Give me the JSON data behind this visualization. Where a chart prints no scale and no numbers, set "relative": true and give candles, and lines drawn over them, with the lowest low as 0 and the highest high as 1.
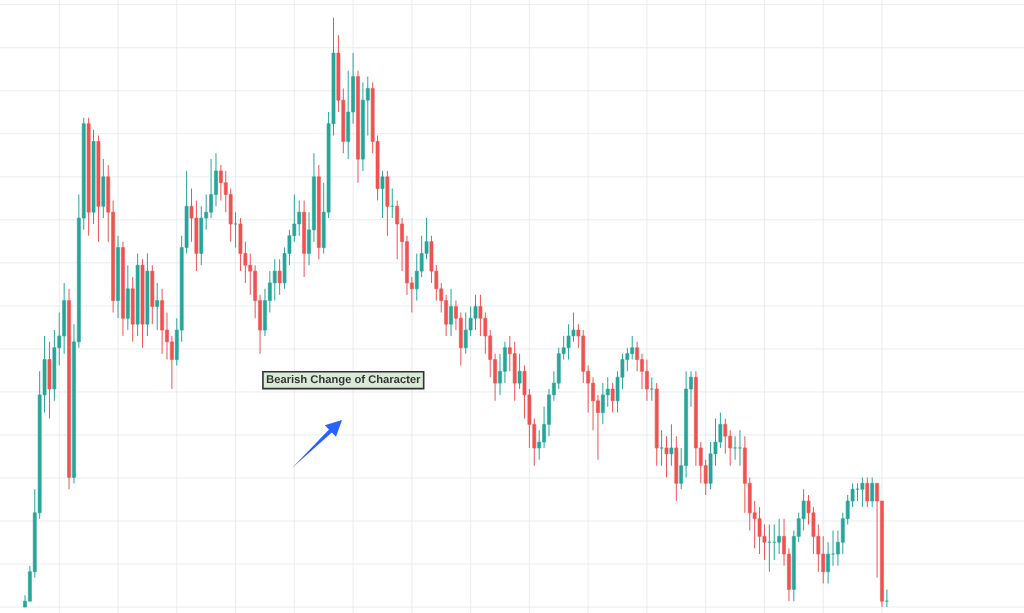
{
  "chart_data": {
    "type": "candlestick",
    "relative": true,
    "grid": true,
    "annotations": [
      "Bearish Change of Character"
    ],
    "categories": [
      null,
      null,
      null,
      null,
      null,
      null,
      null,
      null,
      null,
      null,
      null,
      null,
      null,
      null,
      null,
      null,
      null,
      null,
      null,
      null,
      null,
      null,
      null,
      null,
      null,
      null,
      null,
      null,
      null,
      null,
      null,
      null,
      null,
      null,
      null,
      null,
      null,
      null,
      null,
      null,
      null,
      null,
      null,
      null,
      null,
      null,
      null,
      null,
      null,
      null,
      null,
      null,
      null,
      null,
      null,
      null,
      null,
      null,
      null,
      null,
      null,
      null,
      null,
      null,
      null,
      null,
      null,
      null,
      null,
      null,
      null,
      null,
      null,
      null,
      null,
      null,
      null,
      null,
      null,
      null,
      null,
      null,
      null,
      null,
      null,
      null,
      null,
      null,
      null,
      null,
      null,
      null,
      null,
      null,
      null,
      null,
      null,
      null,
      null,
      null,
      null,
      null,
      null,
      null,
      null,
      null,
      null,
      null,
      null,
      null,
      null,
      null,
      null,
      null,
      null,
      null,
      null,
      null,
      null,
      null,
      null,
      null,
      null,
      null,
      null,
      null,
      null,
      null,
      null,
      null,
      null,
      null,
      null,
      null,
      null,
      null,
      null,
      null,
      null,
      null,
      null,
      null,
      null,
      null,
      null,
      null,
      null,
      null,
      null,
      null,
      null,
      null,
      null,
      null,
      null,
      null,
      null,
      null,
      null,
      null,
      null,
      null,
      null,
      null,
      null,
      null,
      null,
      null,
      null,
      null,
      null,
      null,
      null,
      null,
      null,
      null,
      null
    ],
    "ohlc": [
      [
        0,
        0.02,
        0,
        0.01
      ],
      [
        0.01,
        0.07,
        0.01,
        0.06
      ],
      [
        0.06,
        0.2,
        0.05,
        0.16
      ],
      [
        0.16,
        0.4,
        0.15,
        0.36
      ],
      [
        0.36,
        0.46,
        0.33,
        0.42
      ],
      [
        0.42,
        0.45,
        0.32,
        0.37
      ],
      [
        0.37,
        0.47,
        0.35,
        0.44
      ],
      [
        0.44,
        0.5,
        0.41,
        0.46
      ],
      [
        0.46,
        0.55,
        0.43,
        0.52
      ],
      [
        0.52,
        0.54,
        0.2,
        0.22
      ],
      [
        0.22,
        0.48,
        0.21,
        0.45
      ],
      [
        0.45,
        0.7,
        0.44,
        0.66
      ],
      [
        0.66,
        0.83,
        0.64,
        0.82
      ],
      [
        0.82,
        0.83,
        0.63,
        0.67
      ],
      [
        0.67,
        0.81,
        0.65,
        0.79
      ],
      [
        0.79,
        0.8,
        0.62,
        0.68
      ],
      [
        0.68,
        0.76,
        0.66,
        0.73
      ],
      [
        0.73,
        0.75,
        0.62,
        0.67
      ],
      [
        0.67,
        0.69,
        0.5,
        0.52
      ],
      [
        0.52,
        0.63,
        0.49,
        0.61
      ],
      [
        0.61,
        0.62,
        0.46,
        0.49
      ],
      [
        0.49,
        0.58,
        0.47,
        0.54
      ],
      [
        0.54,
        0.56,
        0.45,
        0.48
      ],
      [
        0.48,
        0.6,
        0.46,
        0.58
      ],
      [
        0.58,
        0.59,
        0.44,
        0.48
      ],
      [
        0.48,
        0.6,
        0.46,
        0.57
      ],
      [
        0.57,
        0.58,
        0.48,
        0.51
      ],
      [
        0.51,
        0.55,
        0.47,
        0.52
      ],
      [
        0.52,
        0.54,
        0.43,
        0.47
      ],
      [
        0.47,
        0.5,
        0.42,
        0.45
      ],
      [
        0.45,
        0.46,
        0.37,
        0.42
      ],
      [
        0.42,
        0.49,
        0.41,
        0.47
      ],
      [
        0.47,
        0.63,
        0.45,
        0.61
      ],
      [
        0.61,
        0.74,
        0.6,
        0.68
      ],
      [
        0.68,
        0.71,
        0.62,
        0.66
      ],
      [
        0.66,
        0.69,
        0.57,
        0.6
      ],
      [
        0.6,
        0.68,
        0.58,
        0.66
      ],
      [
        0.66,
        0.7,
        0.64,
        0.67
      ],
      [
        0.67,
        0.76,
        0.66,
        0.7
      ],
      [
        0.7,
        0.77,
        0.68,
        0.74
      ],
      [
        0.74,
        0.75,
        0.69,
        0.72
      ],
      [
        0.72,
        0.74,
        0.67,
        0.7
      ],
      [
        0.7,
        0.71,
        0.62,
        0.65
      ],
      [
        0.65,
        0.67,
        0.61,
        0.65
      ],
      [
        0.65,
        0.66,
        0.57,
        0.6
      ],
      [
        0.6,
        0.62,
        0.55,
        0.58
      ],
      [
        0.58,
        0.6,
        0.53,
        0.57
      ],
      [
        0.57,
        0.58,
        0.49,
        0.52
      ],
      [
        0.52,
        0.53,
        0.43,
        0.47
      ],
      [
        0.47,
        0.54,
        0.46,
        0.52
      ],
      [
        0.52,
        0.57,
        0.5,
        0.55
      ],
      [
        0.55,
        0.59,
        0.52,
        0.57
      ],
      [
        0.57,
        0.59,
        0.53,
        0.55
      ],
      [
        0.55,
        0.61,
        0.54,
        0.6
      ],
      [
        0.6,
        0.64,
        0.58,
        0.63
      ],
      [
        0.63,
        0.7,
        0.62,
        0.65
      ],
      [
        0.65,
        0.69,
        0.63,
        0.67
      ],
      [
        0.67,
        0.69,
        0.56,
        0.6
      ],
      [
        0.6,
        0.67,
        0.58,
        0.64
      ],
      [
        0.64,
        0.77,
        0.62,
        0.73
      ],
      [
        0.73,
        0.75,
        0.59,
        0.61
      ],
      [
        0.61,
        0.72,
        0.6,
        0.67
      ],
      [
        0.67,
        0.84,
        0.66,
        0.82
      ],
      [
        0.82,
        1,
        0.8,
        0.94
      ],
      [
        0.94,
        0.97,
        0.84,
        0.86
      ],
      [
        0.86,
        0.88,
        0.77,
        0.79
      ],
      [
        0.79,
        0.91,
        0.76,
        0.84
      ],
      [
        0.84,
        0.94,
        0.82,
        0.9
      ],
      [
        0.9,
        0.91,
        0.72,
        0.76
      ],
      [
        0.76,
        0.89,
        0.74,
        0.86
      ],
      [
        0.86,
        0.9,
        0.8,
        0.88
      ],
      [
        0.88,
        0.89,
        0.77,
        0.79
      ],
      [
        0.79,
        0.8,
        0.69,
        0.71
      ],
      [
        0.71,
        0.74,
        0.66,
        0.73
      ],
      [
        0.73,
        0.74,
        0.63,
        0.68
      ],
      [
        0.68,
        0.71,
        0.66,
        0.68
      ],
      [
        0.68,
        0.69,
        0.59,
        0.65
      ],
      [
        0.65,
        0.66,
        0.57,
        0.62
      ],
      [
        0.62,
        0.63,
        0.53,
        0.55
      ],
      [
        0.55,
        0.56,
        0.5,
        0.54
      ],
      [
        0.54,
        0.6,
        0.52,
        0.57
      ],
      [
        0.57,
        0.63,
        0.56,
        0.6
      ],
      [
        0.6,
        0.66,
        0.59,
        0.62
      ],
      [
        0.62,
        0.63,
        0.55,
        0.57
      ],
      [
        0.57,
        0.58,
        0.52,
        0.54
      ],
      [
        0.54,
        0.55,
        0.5,
        0.52
      ],
      [
        0.52,
        0.53,
        0.46,
        0.48
      ],
      [
        0.48,
        0.54,
        0.46,
        0.51
      ],
      [
        0.51,
        0.52,
        0.47,
        0.49
      ],
      [
        0.49,
        0.5,
        0.41,
        0.44
      ],
      [
        0.44,
        0.5,
        0.43,
        0.47
      ],
      [
        0.47,
        0.51,
        0.46,
        0.49
      ],
      [
        0.49,
        0.53,
        0.47,
        0.51
      ],
      [
        0.51,
        0.53,
        0.46,
        0.49
      ],
      [
        0.49,
        0.5,
        0.43,
        0.46
      ],
      [
        0.46,
        0.47,
        0.39,
        0.42
      ],
      [
        0.42,
        0.43,
        0.35,
        0.38
      ],
      [
        0.38,
        0.43,
        0.36,
        0.4
      ],
      [
        0.4,
        0.45,
        0.38,
        0.44
      ],
      [
        0.44,
        0.46,
        0.4,
        0.43
      ],
      [
        0.43,
        0.45,
        0.35,
        0.38
      ],
      [
        0.38,
        0.43,
        0.37,
        0.4
      ],
      [
        0.4,
        0.41,
        0.32,
        0.36
      ],
      [
        0.36,
        0.37,
        0.27,
        0.31
      ],
      [
        0.31,
        0.32,
        0.24,
        0.27
      ],
      [
        0.27,
        0.3,
        0.25,
        0.28
      ],
      [
        0.28,
        0.34,
        0.27,
        0.31
      ],
      [
        0.31,
        0.37,
        0.29,
        0.36
      ],
      [
        0.36,
        0.4,
        0.35,
        0.38
      ],
      [
        0.38,
        0.44,
        0.37,
        0.43
      ],
      [
        0.43,
        0.46,
        0.42,
        0.44
      ],
      [
        0.44,
        0.48,
        0.42,
        0.46
      ],
      [
        0.46,
        0.5,
        0.45,
        0.47
      ],
      [
        0.47,
        0.48,
        0.44,
        0.46
      ],
      [
        0.46,
        0.47,
        0.38,
        0.4
      ],
      [
        0.4,
        0.41,
        0.33,
        0.38
      ],
      [
        0.38,
        0.39,
        0.3,
        0.35
      ],
      [
        0.35,
        0.36,
        0.25,
        0.33
      ],
      [
        0.33,
        0.38,
        0.31,
        0.36
      ],
      [
        0.36,
        0.39,
        0.34,
        0.37
      ],
      [
        0.37,
        0.38,
        0.33,
        0.35
      ],
      [
        0.35,
        0.4,
        0.33,
        0.39
      ],
      [
        0.39,
        0.43,
        0.37,
        0.42
      ],
      [
        0.42,
        0.44,
        0.4,
        0.43
      ],
      [
        0.43,
        0.46,
        0.42,
        0.44
      ],
      [
        0.44,
        0.45,
        0.4,
        0.42
      ],
      [
        0.42,
        0.43,
        0.37,
        0.4
      ],
      [
        0.4,
        0.42,
        0.35,
        0.37
      ],
      [
        0.37,
        0.39,
        0.35,
        0.37
      ],
      [
        0.37,
        0.38,
        0.24,
        0.27
      ],
      [
        0.27,
        0.3,
        0.24,
        0.27
      ],
      [
        0.27,
        0.29,
        0.22,
        0.26
      ],
      [
        0.26,
        0.31,
        0.24,
        0.27
      ],
      [
        0.27,
        0.29,
        0.18,
        0.21
      ],
      [
        0.21,
        0.27,
        0.2,
        0.24
      ],
      [
        0.24,
        0.4,
        0.22,
        0.37
      ],
      [
        0.37,
        0.4,
        0.34,
        0.39
      ],
      [
        0.39,
        0.4,
        0.24,
        0.27
      ],
      [
        0.27,
        0.28,
        0.21,
        0.24
      ],
      [
        0.24,
        0.25,
        0.19,
        0.21
      ],
      [
        0.21,
        0.28,
        0.2,
        0.26
      ],
      [
        0.26,
        0.32,
        0.24,
        0.28
      ],
      [
        0.28,
        0.33,
        0.27,
        0.31
      ],
      [
        0.31,
        0.32,
        0.26,
        0.29
      ],
      [
        0.29,
        0.3,
        0.24,
        0.27
      ],
      [
        0.27,
        0.29,
        0.25,
        0.27
      ],
      [
        0.27,
        0.3,
        0.24,
        0.27
      ],
      [
        0.27,
        0.29,
        0.16,
        0.21
      ],
      [
        0.21,
        0.22,
        0.13,
        0.16
      ],
      [
        0.16,
        0.18,
        0.1,
        0.15
      ],
      [
        0.15,
        0.17,
        0.09,
        0.12
      ],
      [
        0.12,
        0.14,
        0.08,
        0.11
      ],
      [
        0.11,
        0.14,
        0.06,
        0.11
      ],
      [
        0.11,
        0.14,
        0.08,
        0.11
      ],
      [
        0.11,
        0.15,
        0.09,
        0.12
      ],
      [
        0.12,
        0.15,
        0.07,
        0.09
      ],
      [
        0.09,
        0.1,
        0.01,
        0.03
      ],
      [
        0.03,
        0.13,
        0.01,
        0.12
      ],
      [
        0.12,
        0.16,
        0.11,
        0.15
      ],
      [
        0.15,
        0.2,
        0.13,
        0.18
      ],
      [
        0.18,
        0.19,
        0.14,
        0.16
      ],
      [
        0.16,
        0.17,
        0.09,
        0.12
      ],
      [
        0.12,
        0.14,
        0.06,
        0.09
      ],
      [
        0.09,
        0.12,
        0.04,
        0.06
      ],
      [
        0.06,
        0.11,
        0.04,
        0.09
      ],
      [
        0.09,
        0.13,
        0.07,
        0.09
      ],
      [
        0.09,
        0.13,
        0.07,
        0.11
      ],
      [
        0.11,
        0.16,
        0.09,
        0.15
      ],
      [
        0.15,
        0.19,
        0.14,
        0.18
      ],
      [
        0.18,
        0.21,
        0.17,
        0.2
      ],
      [
        0.2,
        0.21,
        0.18,
        0.2
      ],
      [
        0.2,
        0.22,
        0.17,
        0.21
      ],
      [
        0.21,
        0.22,
        0.17,
        0.18
      ],
      [
        0.18,
        0.22,
        0.17,
        0.21
      ],
      [
        0.21,
        0.21,
        0.05,
        0.18
      ],
      [
        0.18,
        0.18,
        0,
        0.01
      ],
      [
        0.01,
        0.03,
        0,
        0.01
      ]
    ]
  }
}
